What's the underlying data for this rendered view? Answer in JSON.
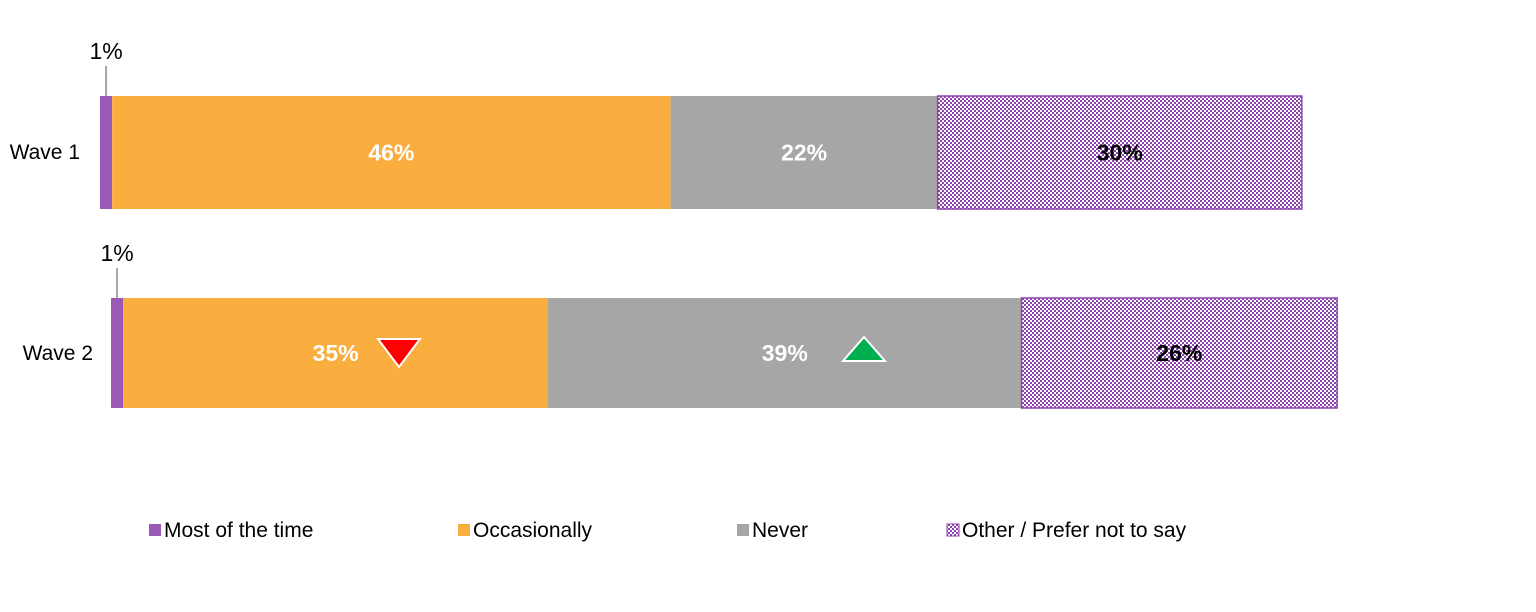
{
  "chart_data": {
    "type": "bar",
    "orientation": "horizontal",
    "stacked": true,
    "categories": [
      "Wave 1",
      "Wave 2"
    ],
    "series": [
      {
        "name": "Most of the time",
        "values": [
          1,
          1
        ],
        "labels": [
          "1%",
          "1%"
        ],
        "color": "#9B59B6"
      },
      {
        "name": "Occasionally",
        "values": [
          46,
          35
        ],
        "labels": [
          "46%",
          "35%"
        ],
        "color": "#FBAE40"
      },
      {
        "name": "Never",
        "values": [
          22,
          39
        ],
        "labels": [
          "22%",
          "39%"
        ],
        "color": "#A6A6A6"
      },
      {
        "name": "Other / Prefer not to say",
        "values": [
          30,
          26
        ],
        "labels": [
          "30%",
          "26%"
        ],
        "color": "#E9D7EE",
        "pattern": "checker"
      }
    ],
    "significance_markers": [
      {
        "category": "Wave 2",
        "series": "Occasionally",
        "direction": "down",
        "color": "#FF0000"
      },
      {
        "category": "Wave 2",
        "series": "Never",
        "direction": "up",
        "color": "#00B050"
      }
    ],
    "legend": {
      "position": "bottom"
    },
    "grid": false
  }
}
